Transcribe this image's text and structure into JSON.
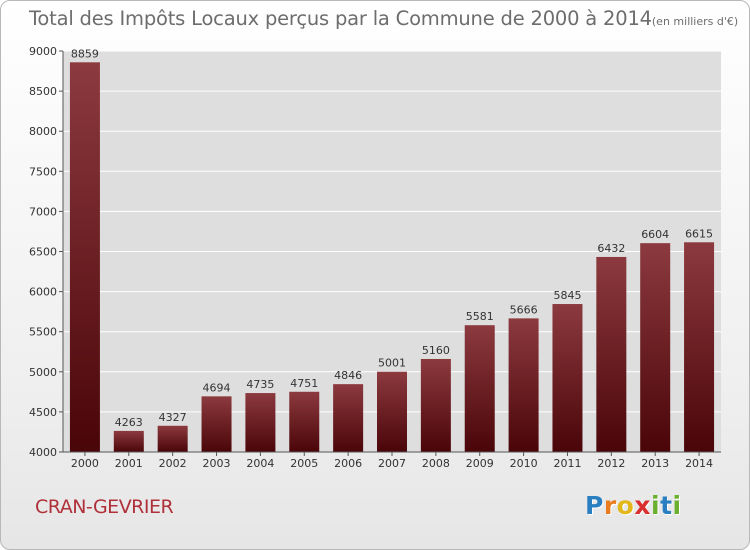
{
  "title": {
    "main": "Total des Impôts Locaux perçus par la Commune de 2000 à 2014",
    "unit": "(en milliers d'€)"
  },
  "city": "CRAN-GEVRIER",
  "logo": {
    "letters": [
      "P",
      "r",
      "o",
      "x",
      "i",
      "t",
      "i"
    ],
    "colors": [
      "#2a7fc0",
      "#e87c1e",
      "#e2b71a",
      "#d92f2f",
      "#6ab02e",
      "#2a7fc0",
      "#6ab02e"
    ]
  },
  "colors": {
    "bar_top": "#8c3a3f",
    "bar_bottom": "#4a0508",
    "plot_bg": "#dedede"
  },
  "chart_data": {
    "type": "bar",
    "title": "Total des Impôts Locaux perçus par la Commune de 2000 à 2014",
    "xlabel": "",
    "ylabel": "",
    "categories": [
      "2000",
      "2001",
      "2002",
      "2003",
      "2004",
      "2005",
      "2006",
      "2007",
      "2008",
      "2009",
      "2010",
      "2011",
      "2012",
      "2013",
      "2014"
    ],
    "values": [
      8859,
      4263,
      4327,
      4694,
      4735,
      4751,
      4846,
      5001,
      5160,
      5581,
      5666,
      5845,
      6432,
      6604,
      6615
    ],
    "ylim": [
      4000,
      9000
    ],
    "yticks": [
      "4000",
      "4500",
      "5000",
      "5500",
      "6000",
      "6500",
      "7000",
      "7500",
      "8000",
      "8500",
      "9000"
    ],
    "grid": true,
    "data_labels": true
  }
}
